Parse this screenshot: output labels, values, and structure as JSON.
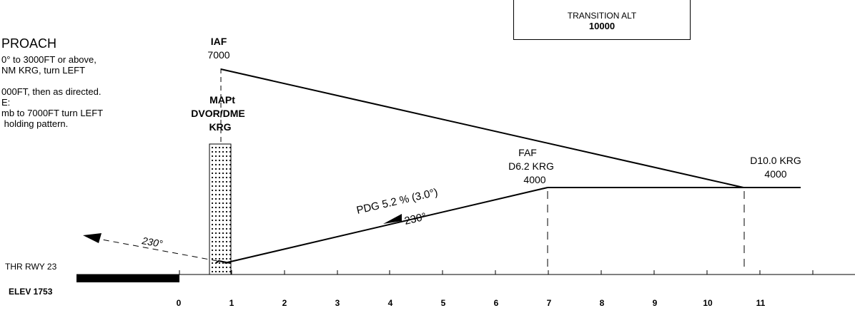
{
  "missed_approach": {
    "title": "PROACH",
    "text_lines": [
      "0° to 3000FT or above,",
      "NM KRG, turn LEFT",
      "",
      "000FT, then as directed.",
      "E:",
      "mb to 7000FT turn LEFT",
      " holding pattern."
    ]
  },
  "transition_alt": {
    "label": "TRANSITION ALT",
    "value": "10000"
  },
  "fixes": {
    "iaf": {
      "name": "IAF",
      "alt": "7000"
    },
    "mapt": {
      "line1": "MAPt",
      "line2": "DVOR/DME",
      "line3": "KRG"
    },
    "faf": {
      "name": "FAF",
      "dist": "D6.2 KRG",
      "alt": "4000"
    },
    "d10": {
      "name": "D10.0 KRG",
      "alt": "4000"
    }
  },
  "path": {
    "pdg": "PDG 5.2 % (3.0°)",
    "course_in": "230°",
    "course_missed": "230°"
  },
  "threshold": {
    "label": "THR RWY 23",
    "elev": "ELEV 1753"
  },
  "distance_scale": {
    "ticks": [
      "0",
      "1",
      "2",
      "3",
      "4",
      "5",
      "6",
      "7",
      "8",
      "9",
      "10",
      "11"
    ]
  }
}
